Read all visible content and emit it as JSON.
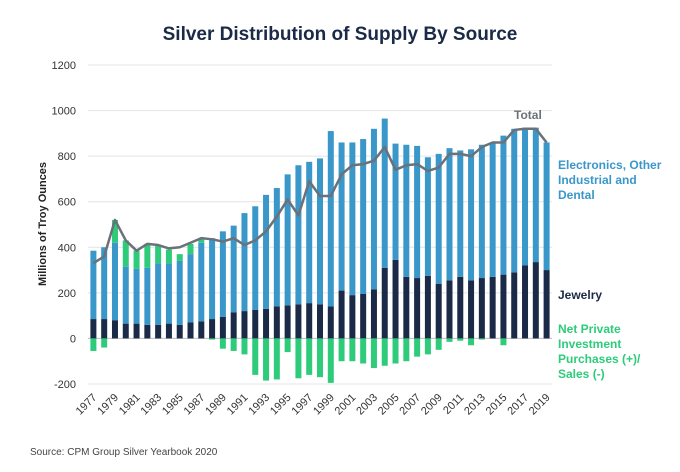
{
  "chart_data": {
    "type": "stacked_bar_line",
    "title": "Silver Distribution of Supply By Source",
    "y_label": "Millions of Troy Ounces",
    "source": "Source: CPM Group Silver Yearbook 2020",
    "categories": [
      "1977",
      null,
      "1979",
      null,
      "1981",
      null,
      "1983",
      null,
      "1985",
      null,
      "1987",
      null,
      "1989",
      null,
      "1991",
      null,
      "1993",
      null,
      "1995",
      null,
      "1997",
      null,
      "1999",
      null,
      "2001",
      null,
      "2003",
      null,
      "2005",
      null,
      "2007",
      null,
      "2009",
      null,
      "2011",
      null,
      "2013",
      null,
      "2015",
      null,
      "2017",
      null,
      "2019"
    ],
    "ylim": [
      -200,
      1200
    ],
    "yticks": [
      -200,
      0,
      200,
      400,
      600,
      800,
      1000,
      1200
    ],
    "grid": true,
    "series": [
      {
        "name": "Jewelry",
        "color": "#1b2a47",
        "kind": "bar",
        "values": [
          85,
          85,
          80,
          65,
          65,
          60,
          60,
          65,
          60,
          70,
          75,
          85,
          95,
          115,
          120,
          125,
          130,
          140,
          145,
          150,
          155,
          150,
          140,
          210,
          190,
          195,
          215,
          310,
          345,
          270,
          265,
          275,
          240,
          255,
          270,
          255,
          265,
          270,
          280,
          290,
          320,
          335,
          300
        ]
      },
      {
        "name": "Electronics, Other Industrial and Dental",
        "color": "#3a97c9",
        "kind": "bar",
        "values": [
          300,
          315,
          340,
          250,
          240,
          250,
          270,
          265,
          280,
          300,
          345,
          355,
          375,
          380,
          430,
          455,
          500,
          520,
          575,
          610,
          620,
          640,
          770,
          650,
          670,
          680,
          705,
          655,
          510,
          580,
          580,
          520,
          570,
          580,
          555,
          575,
          585,
          590,
          610,
          630,
          605,
          590,
          560
        ]
      },
      {
        "name": "Net Private Investment Purchases (+)/ Sales (-)",
        "color": "#2ecc7a",
        "kind": "bar",
        "values": [
          -55,
          -40,
          100,
          115,
          80,
          105,
          80,
          60,
          30,
          45,
          20,
          -5,
          -45,
          -55,
          -70,
          -160,
          -185,
          -180,
          -60,
          -175,
          -160,
          -170,
          -195,
          -100,
          -100,
          -110,
          -130,
          -120,
          -110,
          -100,
          -80,
          -70,
          -50,
          -15,
          -10,
          -30,
          -5,
          0,
          -30,
          0,
          0,
          0,
          0
        ]
      },
      {
        "name": "Total",
        "color": "#6b7178",
        "kind": "line",
        "values": [
          330,
          360,
          520,
          430,
          385,
          415,
          410,
          395,
          400,
          420,
          440,
          435,
          425,
          440,
          410,
          430,
          470,
          535,
          610,
          540,
          690,
          625,
          625,
          720,
          760,
          765,
          780,
          840,
          740,
          760,
          765,
          735,
          750,
          810,
          810,
          800,
          840,
          860,
          860,
          915,
          920,
          920,
          860
        ]
      }
    ]
  }
}
